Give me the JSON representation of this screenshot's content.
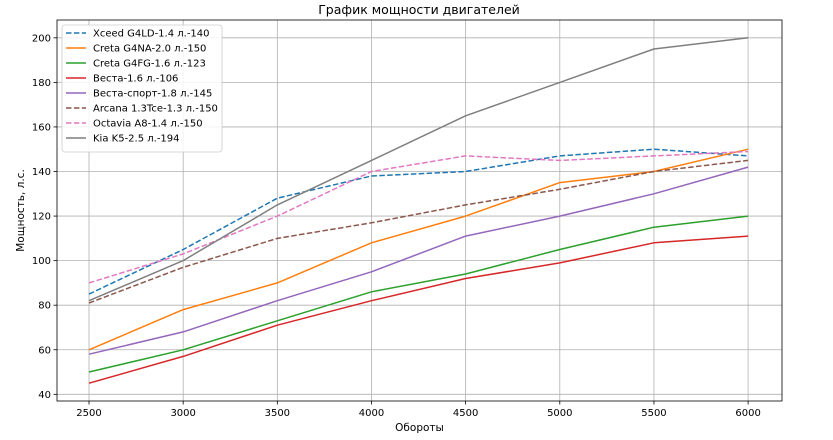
{
  "chart_data": {
    "type": "line",
    "title": "График мощности двигателей",
    "xlabel": "Обороты",
    "ylabel": "Мощность, л.с.",
    "x": [
      2500,
      3000,
      3500,
      4000,
      4500,
      5000,
      5500,
      6000
    ],
    "xlim": [
      2330,
      6180
    ],
    "ylim": [
      37,
      208
    ],
    "yticks": [
      40,
      60,
      80,
      100,
      120,
      140,
      160,
      180,
      200
    ],
    "grid": true,
    "legend_position": "top-left",
    "series": [
      {
        "name": "Xceed G4LD-1.4 л.-140",
        "color": "#1f77b4",
        "dash": "dashed",
        "values": [
          85,
          105,
          128,
          138,
          140,
          147,
          150,
          147
        ]
      },
      {
        "name": "Creta G4NA-2.0 л.-150",
        "color": "#ff7f0e",
        "dash": "solid",
        "values": [
          60,
          78,
          90,
          108,
          120,
          135,
          140,
          150
        ]
      },
      {
        "name": "Creta G4FG-1.6 л.-123",
        "color": "#2ca02c",
        "dash": "solid",
        "values": [
          50,
          60,
          73,
          86,
          94,
          105,
          115,
          120
        ]
      },
      {
        "name": "Веста-1.6 л.-106",
        "color": "#d62728",
        "dash": "solid",
        "values": [
          45,
          57,
          71,
          82,
          92,
          99,
          108,
          111
        ]
      },
      {
        "name": "Веста-спорт-1.8 л.-145",
        "color": "#9467bd",
        "dash": "solid",
        "values": [
          58,
          68,
          82,
          95,
          111,
          120,
          130,
          142
        ]
      },
      {
        "name": "Arcana 1.3Tce-1.3 л.-150",
        "color": "#8c564b",
        "dash": "dashed",
        "values": [
          81,
          97,
          110,
          117,
          125,
          132,
          140,
          145
        ]
      },
      {
        "name": "Octavia A8-1.4 л.-150",
        "color": "#e377c2",
        "dash": "dashed",
        "values": [
          90,
          103,
          120,
          140,
          147,
          145,
          147,
          149
        ]
      },
      {
        "name": "Kia K5-2.5 л.-194",
        "color": "#7f7f7f",
        "dash": "solid",
        "values": [
          82,
          100,
          125,
          145,
          165,
          180,
          195,
          200
        ]
      }
    ]
  }
}
